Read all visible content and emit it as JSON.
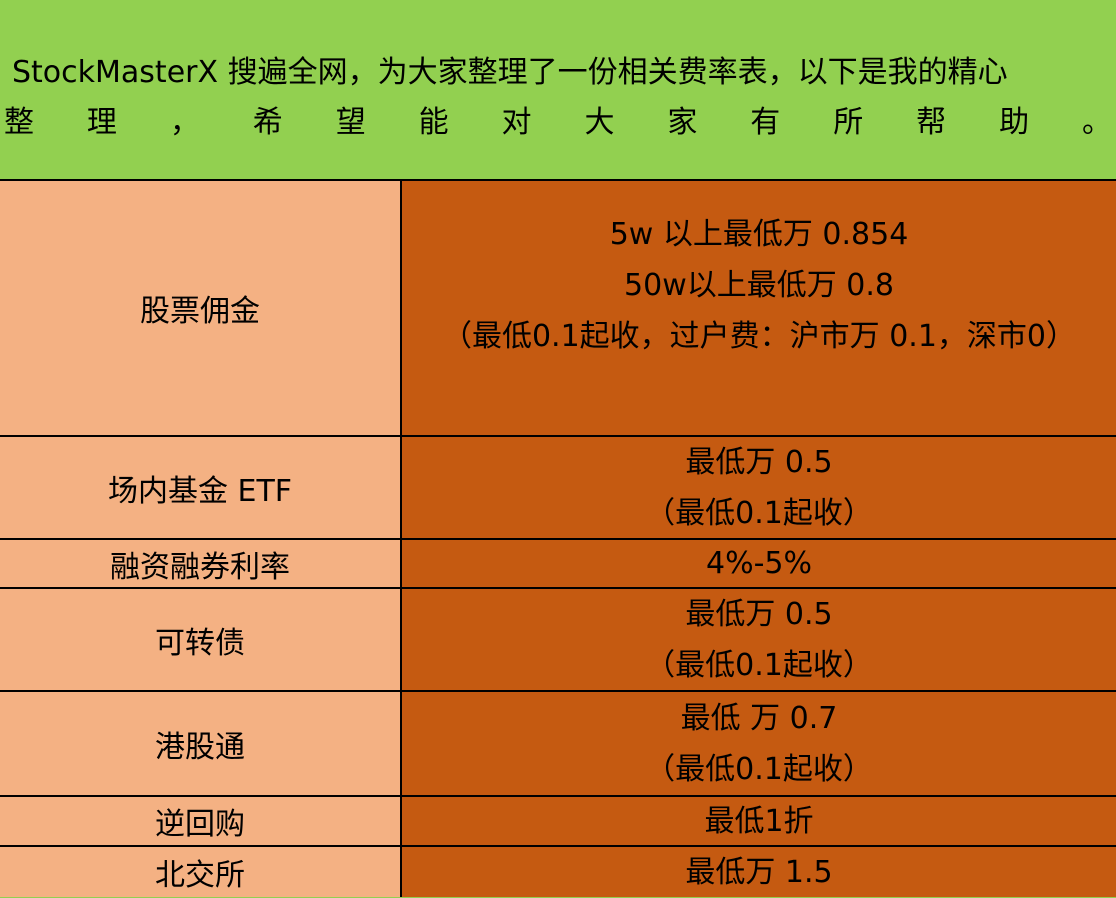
{
  "header": {
    "line1": "StockMasterX 搜遍全网，为大家整理了一份相关费率表，以下是我的精心",
    "line2": [
      "整",
      "理",
      "，",
      "希",
      "望",
      "能",
      "对",
      "大",
      "家",
      "有",
      "所",
      "帮",
      "助",
      "。"
    ]
  },
  "colors": {
    "header_bg": "#92d050",
    "label_bg": "#f4b183",
    "value_bg": "#c55a11"
  },
  "rows": [
    {
      "label": "股票佣金",
      "lines": [
        "5w 以上最低万 0.854",
        "50w以上最低万 0.8",
        "（最低0.1起收，过户费：沪市万 0.1，深市0）"
      ]
    },
    {
      "label": "场内基金 ETF",
      "lines": [
        "最低万 0.5",
        "（最低0.1起收）"
      ]
    },
    {
      "label": "融资融券利率",
      "lines": [
        "4%-5%"
      ]
    },
    {
      "label": "可转债",
      "lines": [
        "最低万 0.5",
        "（最低0.1起收）"
      ]
    },
    {
      "label": "港股通",
      "lines": [
        "最低 万 0.7",
        "（最低0.1起收）"
      ]
    },
    {
      "label": "逆回购",
      "lines": [
        "最低1折"
      ]
    },
    {
      "label": "北交所",
      "lines": [
        "最低万 1.5"
      ]
    }
  ]
}
